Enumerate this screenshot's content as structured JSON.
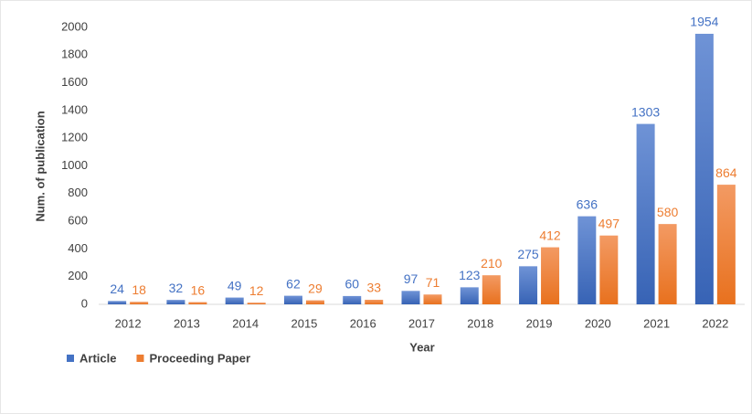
{
  "chart_data": {
    "type": "bar",
    "categories": [
      "2012",
      "2013",
      "2014",
      "2015",
      "2016",
      "2017",
      "2018",
      "2019",
      "2020",
      "2021",
      "2022"
    ],
    "series": [
      {
        "name": "Article",
        "color": "#4472c4",
        "values": [
          24,
          32,
          49,
          62,
          60,
          97,
          123,
          275,
          636,
          1303,
          1954
        ]
      },
      {
        "name": "Proceeding Paper",
        "color": "#ed7d31",
        "values": [
          18,
          16,
          12,
          29,
          33,
          71,
          210,
          412,
          497,
          580,
          864
        ]
      }
    ],
    "xlabel": "Year",
    "ylabel": "Num. of publication",
    "ylim": [
      0,
      2000
    ],
    "yticks": [
      0,
      200,
      400,
      600,
      800,
      1000,
      1200,
      1400,
      1600,
      1800,
      2000
    ],
    "grid": false,
    "legend": "bottom-left"
  }
}
